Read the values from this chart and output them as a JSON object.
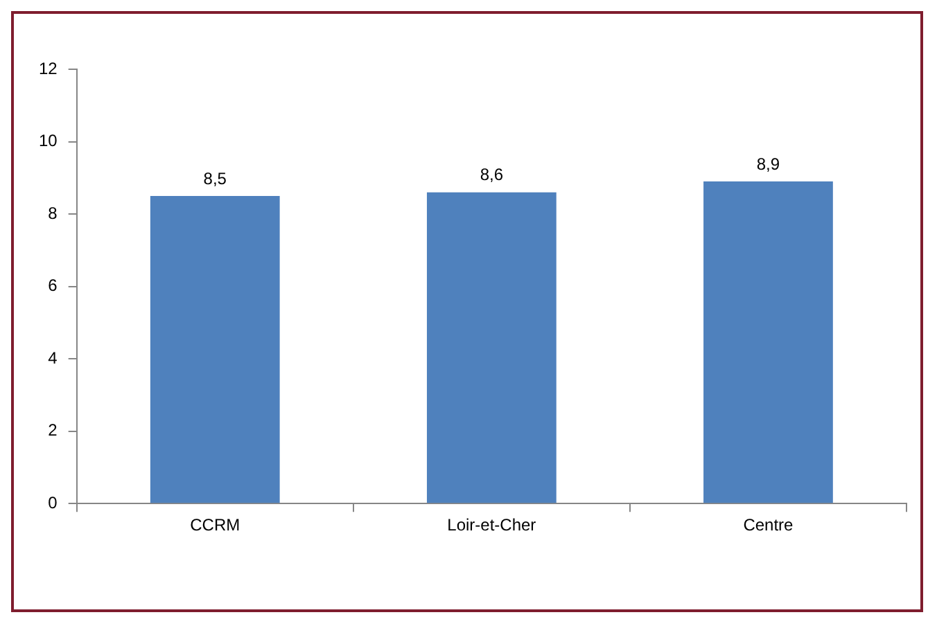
{
  "chart_data": {
    "type": "bar",
    "categories": [
      "CCRM",
      "Loir-et-Cher",
      "Centre"
    ],
    "values": [
      8.5,
      8.6,
      8.9
    ],
    "value_labels": [
      "8,5",
      "8,6",
      "8,9"
    ],
    "color": "#4f81bd",
    "ylim": [
      0,
      12
    ],
    "yticks": [
      0,
      2,
      4,
      6,
      8,
      10,
      12
    ],
    "grid": false
  }
}
